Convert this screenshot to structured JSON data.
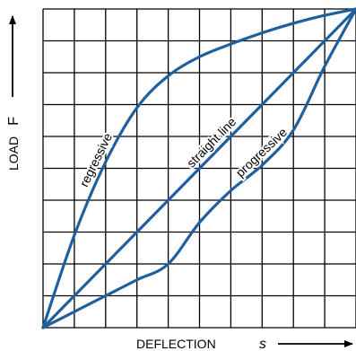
{
  "chart_data": {
    "type": "line",
    "title": "",
    "xlabel": "DEFLECTION",
    "xlabel_symbol": "s",
    "ylabel": "LOAD",
    "ylabel_symbol": "F",
    "grid": true,
    "grid_divisions": {
      "x": 10,
      "y": 10
    },
    "xlim": [
      0,
      10
    ],
    "ylim": [
      0,
      10
    ],
    "line_color": "#1f5f9e",
    "series": [
      {
        "name": "regressive",
        "x": [
          0,
          1,
          2,
          3,
          4,
          5,
          6,
          7,
          8,
          9,
          10
        ],
        "y": [
          0,
          2.9,
          5.2,
          6.9,
          7.9,
          8.5,
          8.9,
          9.25,
          9.55,
          9.8,
          10
        ]
      },
      {
        "name": "straight line",
        "x": [
          0,
          10
        ],
        "y": [
          0,
          10
        ]
      },
      {
        "name": "progressive",
        "x": [
          0,
          1,
          2,
          3,
          4,
          5,
          6,
          7,
          8,
          9,
          10
        ],
        "y": [
          0,
          0.5,
          1.0,
          1.5,
          2.0,
          3.3,
          4.3,
          5.1,
          6.2,
          8.2,
          10
        ]
      }
    ]
  }
}
